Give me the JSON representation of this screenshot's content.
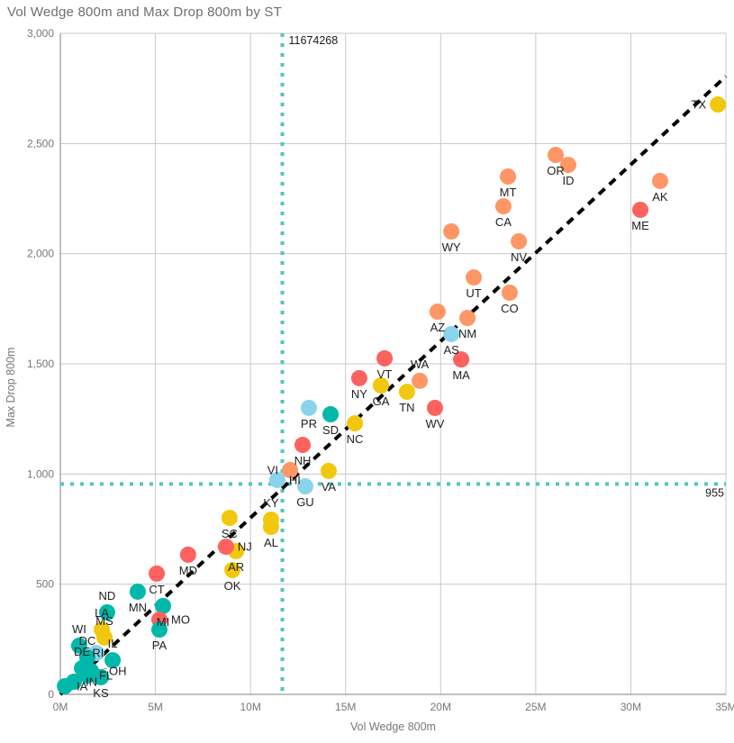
{
  "chart_data": {
    "type": "scatter",
    "title": "Vol Wedge 800m and Max Drop 800m by ST",
    "xlabel": "Vol Wedge 800m",
    "ylabel": "Max Drop 800m",
    "x_unit": "millions",
    "x_max_m": 35,
    "y_max": 3000,
    "grid": true,
    "legend": "none",
    "x_ticks": [
      {
        "value": 0,
        "label": "0M"
      },
      {
        "value": 5,
        "label": "5M"
      },
      {
        "value": 10,
        "label": "10M"
      },
      {
        "value": 15,
        "label": "15M"
      },
      {
        "value": 20,
        "label": "20M"
      },
      {
        "value": 25,
        "label": "25M"
      },
      {
        "value": 30,
        "label": "30M"
      },
      {
        "value": 35,
        "label": "35M"
      }
    ],
    "y_ticks": [
      {
        "value": 0,
        "label": "0"
      },
      {
        "value": 500,
        "label": "500"
      },
      {
        "value": 1000,
        "label": "1,000"
      },
      {
        "value": 1500,
        "label": "1,500"
      },
      {
        "value": 2000,
        "label": "2,000"
      },
      {
        "value": 2500,
        "label": "2,500"
      },
      {
        "value": 3000,
        "label": "3,000"
      }
    ],
    "ref_line_x": {
      "value_m": 11.674268,
      "label": "11674268"
    },
    "ref_line_y": {
      "value": 955,
      "label": "955"
    },
    "trend_line": {
      "x0_m": 0,
      "y0": 0,
      "x1_m": 35,
      "y1": 2805
    },
    "colors": {
      "teal": "#01B8AA",
      "red": "#FD625E",
      "yellow": "#F2C80F",
      "lightblue": "#8AD4EB",
      "orange": "#FE9666",
      "ref_line": "#4FC7BE",
      "trend": "#000000",
      "gridline": "#c9c9c9",
      "axis_line": "#808080",
      "tick_text": "#777777",
      "point_label": "#212121"
    },
    "points": [
      {
        "st": "TX",
        "x_m": 34.58,
        "y": 2677,
        "color": "yellow",
        "label_pos": "left"
      },
      {
        "st": "AK",
        "x_m": 31.54,
        "y": 2330,
        "color": "orange",
        "label_pos": "below"
      },
      {
        "st": "ME",
        "x_m": 30.5,
        "y": 2199,
        "color": "red",
        "label_pos": "below"
      },
      {
        "st": "ID",
        "x_m": 26.71,
        "y": 2403,
        "color": "orange",
        "label_pos": "below"
      },
      {
        "st": "OR",
        "x_m": 26.05,
        "y": 2448,
        "color": "orange",
        "label_pos": "below"
      },
      {
        "st": "NV",
        "x_m": 24.11,
        "y": 2056,
        "color": "orange",
        "label_pos": "below"
      },
      {
        "st": "CO",
        "x_m": 23.63,
        "y": 1823,
        "color": "orange",
        "label_pos": "below"
      },
      {
        "st": "MT",
        "x_m": 23.54,
        "y": 2350,
        "color": "orange",
        "label_pos": "below"
      },
      {
        "st": "CA",
        "x_m": 23.3,
        "y": 2215,
        "color": "orange",
        "label_pos": "below"
      },
      {
        "st": "UT",
        "x_m": 21.74,
        "y": 1892,
        "color": "orange",
        "label_pos": "below"
      },
      {
        "st": "NM",
        "x_m": 21.41,
        "y": 1708,
        "color": "orange",
        "label_pos": "below"
      },
      {
        "st": "MA",
        "x_m": 21.08,
        "y": 1520,
        "color": "red",
        "label_pos": "below"
      },
      {
        "st": "WY",
        "x_m": 20.56,
        "y": 2101,
        "color": "orange",
        "label_pos": "below"
      },
      {
        "st": "AS",
        "x_m": 20.56,
        "y": 1635,
        "color": "lightblue",
        "label_pos": "below"
      },
      {
        "st": "AZ",
        "x_m": 19.84,
        "y": 1737,
        "color": "orange",
        "label_pos": "below"
      },
      {
        "st": "WV",
        "x_m": 19.7,
        "y": 1300,
        "color": "red",
        "label_pos": "below"
      },
      {
        "st": "WA",
        "x_m": 18.9,
        "y": 1423,
        "color": "orange",
        "label_pos": "above"
      },
      {
        "st": "TN",
        "x_m": 18.23,
        "y": 1373,
        "color": "yellow",
        "label_pos": "below"
      },
      {
        "st": "VT",
        "x_m": 17.05,
        "y": 1525,
        "color": "red",
        "label_pos": "below"
      },
      {
        "st": "GA",
        "x_m": 16.86,
        "y": 1402,
        "color": "yellow",
        "label_pos": "below"
      },
      {
        "st": "NY",
        "x_m": 15.72,
        "y": 1435,
        "color": "red",
        "label_pos": "below"
      },
      {
        "st": "NC",
        "x_m": 15.49,
        "y": 1230,
        "color": "yellow",
        "label_pos": "below"
      },
      {
        "st": "SD",
        "x_m": 14.21,
        "y": 1271,
        "color": "teal",
        "label_pos": "below"
      },
      {
        "st": "VA",
        "x_m": 14.11,
        "y": 1014,
        "color": "yellow",
        "label_pos": "below"
      },
      {
        "st": "PR",
        "x_m": 13.07,
        "y": 1300,
        "color": "lightblue",
        "label_pos": "below"
      },
      {
        "st": "GU",
        "x_m": 12.88,
        "y": 944,
        "color": "lightblue",
        "label_pos": "below"
      },
      {
        "st": "NH",
        "x_m": 12.74,
        "y": 1132,
        "color": "red",
        "label_pos": "below"
      },
      {
        "st": "VI",
        "x_m": 12.08,
        "y": 1018,
        "color": "orange",
        "label_pos": "left"
      },
      {
        "st": "HI",
        "x_m": 11.41,
        "y": 973,
        "color": "lightblue",
        "label_pos": "right"
      },
      {
        "st": "KY",
        "x_m": 11.08,
        "y": 793,
        "color": "yellow",
        "label_pos": "above"
      },
      {
        "st": "AL",
        "x_m": 11.08,
        "y": 760,
        "color": "yellow",
        "label_pos": "below"
      },
      {
        "st": "AR",
        "x_m": 9.24,
        "y": 650,
        "color": "yellow",
        "label_pos": "below"
      },
      {
        "st": "OK",
        "x_m": 9.05,
        "y": 564,
        "color": "yellow",
        "label_pos": "below"
      },
      {
        "st": "SC",
        "x_m": 8.9,
        "y": 801,
        "color": "yellow",
        "label_pos": "below"
      },
      {
        "st": "NJ",
        "x_m": 8.71,
        "y": 670,
        "color": "red",
        "label_pos": "right"
      },
      {
        "st": "MD",
        "x_m": 6.72,
        "y": 634,
        "color": "red",
        "label_pos": "below"
      },
      {
        "st": "MI",
        "x_m": 5.4,
        "y": 401,
        "color": "teal",
        "label_pos": "below"
      },
      {
        "st": "MO",
        "x_m": 5.21,
        "y": 339,
        "color": "red",
        "label_pos": "right"
      },
      {
        "st": "PA",
        "x_m": 5.21,
        "y": 294,
        "color": "teal",
        "label_pos": "below"
      },
      {
        "st": "CT",
        "x_m": 5.07,
        "y": 548,
        "color": "red",
        "label_pos": "below"
      },
      {
        "st": "MN",
        "x_m": 4.07,
        "y": 466,
        "color": "teal",
        "label_pos": "below"
      },
      {
        "st": "ND",
        "x_m": 2.46,
        "y": 372,
        "color": "teal",
        "label_pos": "above"
      },
      {
        "st": "LA",
        "x_m": 2.18,
        "y": 294,
        "color": "yellow",
        "label_pos": "above"
      },
      {
        "st": "MS",
        "x_m": 2.32,
        "y": 258,
        "color": "yellow",
        "label_pos": "above"
      },
      {
        "st": "WI",
        "x_m": 0.99,
        "y": 221,
        "color": "teal",
        "label_pos": "above"
      },
      {
        "st": "RI",
        "x_m": 1.89,
        "y": 188,
        "color": "lightblue",
        "label_pos": "on"
      },
      {
        "st": "DC",
        "x_m": 1.42,
        "y": 168,
        "color": "teal",
        "label_pos": "above"
      },
      {
        "st": "IL",
        "x_m": 2.75,
        "y": 155,
        "color": "teal",
        "label_pos": "above"
      },
      {
        "st": "DE",
        "x_m": 1.14,
        "y": 119,
        "color": "teal",
        "label_pos": "above"
      },
      {
        "st": "OH",
        "x_m": 1.61,
        "y": 106,
        "color": "teal",
        "label_pos": "right",
        "leader": true
      },
      {
        "st": "FL",
        "x_m": 1.42,
        "y": 86,
        "color": "teal",
        "label_pos": "right"
      },
      {
        "st": "KS",
        "x_m": 2.13,
        "y": 78,
        "color": "teal",
        "label_pos": "below"
      },
      {
        "st": "IN",
        "x_m": 0.71,
        "y": 57,
        "color": "teal",
        "label_pos": "right"
      },
      {
        "st": "IA",
        "x_m": 0.24,
        "y": 37,
        "color": "teal",
        "label_pos": "right"
      }
    ]
  }
}
